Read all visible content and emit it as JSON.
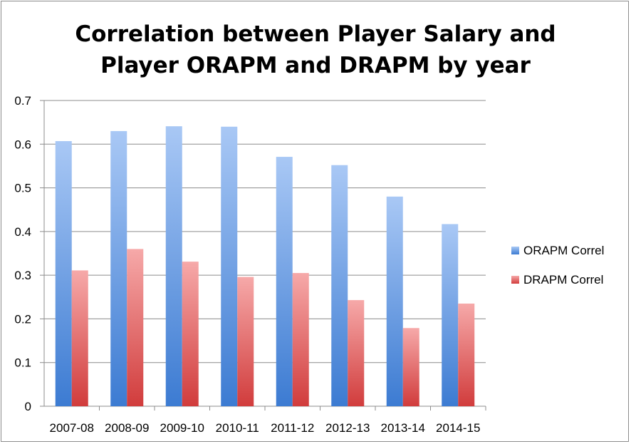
{
  "chart_data": {
    "type": "bar",
    "title": [
      "Correlation between Player Salary and",
      "Player ORAPM and DRAPM by year"
    ],
    "categories": [
      "2007-08",
      "2008-09",
      "2009-10",
      "2010-11",
      "2011-12",
      "2012-13",
      "2013-14",
      "2014-15"
    ],
    "series": [
      {
        "name": "ORAPM Correl",
        "values": [
          0.607,
          0.63,
          0.641,
          0.64,
          0.571,
          0.552,
          0.48,
          0.417
        ],
        "color": "#4a86d8"
      },
      {
        "name": "DRAPM Correl",
        "values": [
          0.311,
          0.36,
          0.331,
          0.296,
          0.305,
          0.243,
          0.179,
          0.235
        ],
        "color": "#d94a4a"
      }
    ],
    "y_ticks": [
      "0",
      "0.1",
      "0.2",
      "0.3",
      "0.4",
      "0.5",
      "0.6",
      "0.7"
    ],
    "ylim": [
      0,
      0.7
    ],
    "grid": true,
    "legend_position": "right"
  }
}
